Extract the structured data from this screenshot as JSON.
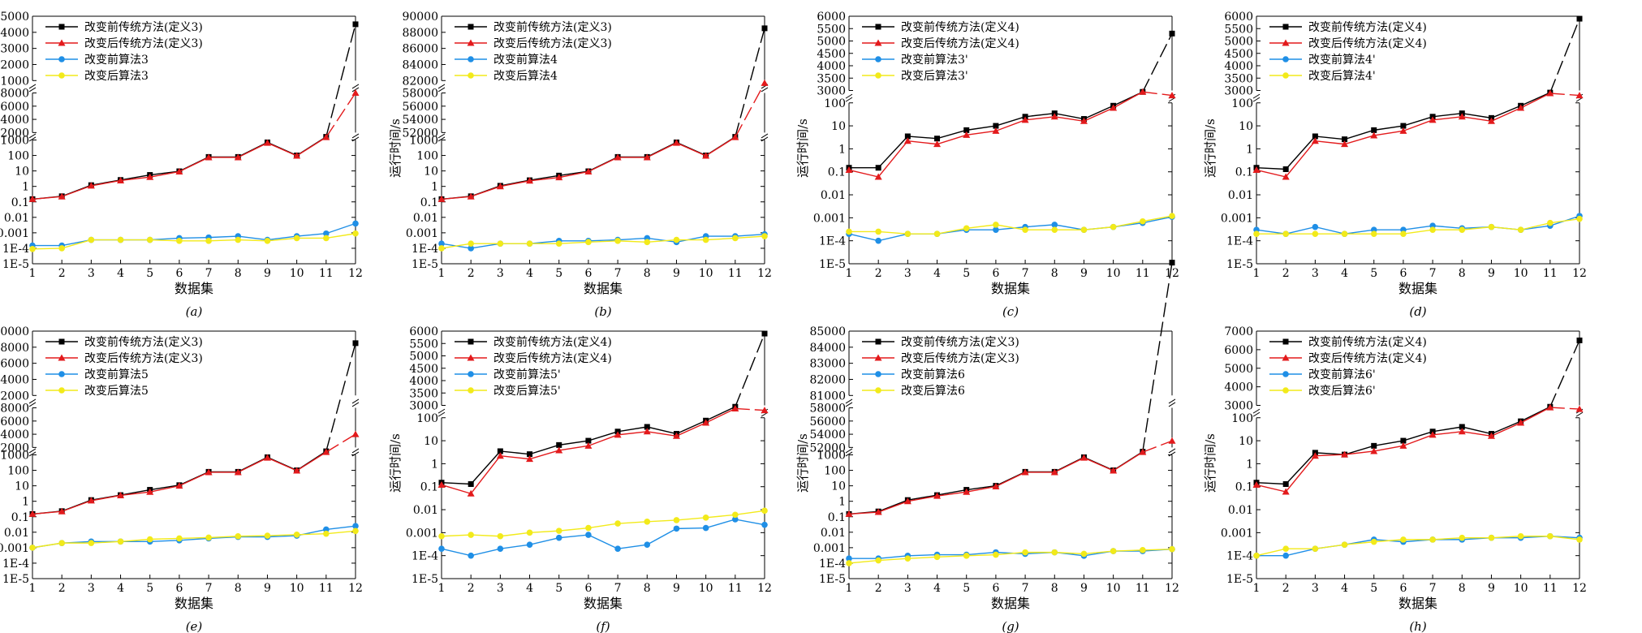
{
  "colors": {
    "s1": "#000000",
    "s2": "#e31a1c",
    "s3": "#1f8fe6",
    "s4": "#f2ea1a"
  },
  "chart_data": [
    {
      "type": "line",
      "caption": "(a)",
      "xlabel": "数据集",
      "ylabel": "运行时间/s",
      "x": [
        1,
        2,
        3,
        4,
        5,
        6,
        7,
        8,
        9,
        10,
        11,
        12
      ],
      "y_scale": "broken (log lower, linear upper)",
      "lower_log_ticks": [
        "1E-5",
        "1E-4",
        "0.001",
        "0.01",
        "0.1",
        "1",
        "10",
        "100",
        "1000"
      ],
      "mid_ticks": [
        52000,
        54000,
        56000,
        58000
      ],
      "top_ticks": [
        81000,
        82000,
        83000,
        84000,
        85000
      ],
      "legend_position": "top-left",
      "series": [
        {
          "name": "改变前传统方法(定义3)",
          "marker": "square",
          "color": "#000000",
          "values": [
            0.15,
            0.23,
            1.2,
            2.6,
            5.5,
            9.5,
            80,
            80,
            700,
            100,
            1600,
            84500
          ]
        },
        {
          "name": "改变后传统方法(定义3)",
          "marker": "triangle",
          "color": "#e31a1c",
          "values": [
            0.15,
            0.22,
            1.1,
            2.4,
            4.0,
            9.0,
            75,
            75,
            650,
            95,
            1500,
            58000
          ]
        },
        {
          "name": "改变前算法3",
          "marker": "circle",
          "color": "#1f8fe6",
          "values": [
            0.00015,
            0.00015,
            0.00035,
            0.00035,
            0.00035,
            0.00045,
            0.0005,
            0.0006,
            0.00035,
            0.0006,
            0.0009,
            0.004
          ]
        },
        {
          "name": "改变后算法3",
          "marker": "circle",
          "color": "#f2ea1a",
          "values": [
            9e-05,
            0.0001,
            0.00035,
            0.00035,
            0.00035,
            0.0003,
            0.0003,
            0.00035,
            0.0003,
            0.00045,
            0.00045,
            0.0009
          ]
        }
      ]
    },
    {
      "type": "line",
      "caption": "(b)",
      "xlabel": "数据集",
      "ylabel": "运行时间/s",
      "x": [
        1,
        2,
        3,
        4,
        5,
        6,
        7,
        8,
        9,
        10,
        11,
        12
      ],
      "y_scale": "broken (log lower, linear upper)",
      "lower_log_ticks": [
        "1E-5",
        "1E-4",
        "0.001",
        "0.01",
        "0.1",
        "1",
        "10",
        "100",
        "1000"
      ],
      "mid_ticks": [
        52000,
        54000,
        56000,
        58000
      ],
      "top_ticks": [
        82000,
        84000,
        86000,
        88000,
        90000
      ],
      "legend_position": "top-left",
      "series": [
        {
          "name": "改变前传统方法(定义3)",
          "marker": "square",
          "color": "#000000",
          "values": [
            0.15,
            0.23,
            1.1,
            2.5,
            5.0,
            9.5,
            80,
            80,
            700,
            100,
            1600,
            88500
          ]
        },
        {
          "name": "改变后传统方法(定义3)",
          "marker": "triangle",
          "color": "#e31a1c",
          "values": [
            0.15,
            0.22,
            1.0,
            2.3,
            3.8,
            9.0,
            75,
            75,
            650,
            95,
            1500,
            59500
          ]
        },
        {
          "name": "改变前算法4",
          "marker": "circle",
          "color": "#1f8fe6",
          "values": [
            0.0002,
            0.0001,
            0.0002,
            0.0002,
            0.0003,
            0.0003,
            0.00035,
            0.00045,
            0.00025,
            0.0006,
            0.0006,
            0.0008
          ]
        },
        {
          "name": "改变后算法4",
          "marker": "circle",
          "color": "#f2ea1a",
          "values": [
            0.0001,
            0.0002,
            0.0002,
            0.0002,
            0.0002,
            0.00025,
            0.0003,
            0.00025,
            0.00035,
            0.00035,
            0.00045,
            0.0006
          ]
        }
      ]
    },
    {
      "type": "line",
      "caption": "(c)",
      "xlabel": "数据集",
      "ylabel": "运行时间/s",
      "x": [
        1,
        2,
        3,
        4,
        5,
        6,
        7,
        8,
        9,
        10,
        11,
        12
      ],
      "y_scale": "broken (log lower, linear upper)",
      "lower_log_ticks": [
        "1E-5",
        "1E-4",
        "0.001",
        "0.01",
        "0.1",
        "1",
        "10",
        "100"
      ],
      "top_ticks": [
        3000,
        3500,
        4000,
        4500,
        5000,
        5500,
        6000
      ],
      "legend_position": "top-left",
      "series": [
        {
          "name": "改变前传统方法(定义4)",
          "marker": "square",
          "color": "#000000",
          "values": [
            0.15,
            0.15,
            3.5,
            2.8,
            6.5,
            10,
            25,
            35,
            20,
            75,
            300,
            5300
          ]
        },
        {
          "name": "改变后传统方法(定义4)",
          "marker": "triangle",
          "color": "#e31a1c",
          "values": [
            0.12,
            0.06,
            2.2,
            1.6,
            4.0,
            6.0,
            18,
            25,
            16,
            60,
            300,
            2800
          ]
        },
        {
          "name": "改变前算法3'",
          "marker": "circle",
          "color": "#1f8fe6",
          "values": [
            0.0002,
            0.0001,
            0.0002,
            0.0002,
            0.0003,
            0.0003,
            0.0004,
            0.0005,
            0.0003,
            0.0004,
            0.0006,
            0.0011
          ]
        },
        {
          "name": "改变后算法3'",
          "marker": "circle",
          "color": "#f2ea1a",
          "values": [
            0.00025,
            0.00025,
            0.0002,
            0.0002,
            0.00035,
            0.0005,
            0.0003,
            0.0003,
            0.0003,
            0.0004,
            0.0007,
            0.0012
          ]
        }
      ]
    },
    {
      "type": "line",
      "caption": "(d)",
      "xlabel": "数据集",
      "ylabel": "运行时间/s",
      "x": [
        1,
        2,
        3,
        4,
        5,
        6,
        7,
        8,
        9,
        10,
        11,
        12
      ],
      "y_scale": "broken (log lower, linear upper)",
      "lower_log_ticks": [
        "1E-5",
        "1E-4",
        "0.001",
        "0.01",
        "0.1",
        "1",
        "10",
        "100"
      ],
      "top_ticks": [
        3000,
        3500,
        4000,
        4500,
        5000,
        5500,
        6000
      ],
      "legend_position": "top-left",
      "series": [
        {
          "name": "改变前传统方法(定义4)",
          "marker": "square",
          "color": "#000000",
          "values": [
            0.15,
            0.13,
            3.5,
            2.6,
            6.5,
            10,
            25,
            35,
            22,
            75,
            280,
            5900
          ]
        },
        {
          "name": "改变后传统方法(定义4)",
          "marker": "triangle",
          "color": "#e31a1c",
          "values": [
            0.12,
            0.06,
            2.2,
            1.6,
            3.8,
            6.0,
            18,
            25,
            16,
            60,
            260,
            2800
          ]
        },
        {
          "name": "改变前算法4'",
          "marker": "circle",
          "color": "#1f8fe6",
          "values": [
            0.0003,
            0.0002,
            0.0004,
            0.0002,
            0.0003,
            0.0003,
            0.00045,
            0.00035,
            0.0004,
            0.0003,
            0.00045,
            0.0012
          ]
        },
        {
          "name": "改变后算法4'",
          "marker": "circle",
          "color": "#f2ea1a",
          "values": [
            0.0002,
            0.0002,
            0.0002,
            0.0002,
            0.0002,
            0.0002,
            0.0003,
            0.0003,
            0.0004,
            0.0003,
            0.0006,
            0.0009
          ]
        }
      ]
    },
    {
      "type": "line",
      "caption": "(e)",
      "xlabel": "数据集",
      "ylabel": "运行时间/s",
      "x": [
        1,
        2,
        3,
        4,
        5,
        6,
        7,
        8,
        9,
        10,
        11,
        12
      ],
      "y_scale": "broken (log lower, linear upper)",
      "lower_log_ticks": [
        "1E-5",
        "1E-4",
        "0.001",
        "0.01",
        "0.1",
        "1",
        "10",
        "100",
        "1000"
      ],
      "mid_ticks": [
        52000,
        54000,
        56000,
        58000
      ],
      "top_ticks": [
        82000,
        84000,
        86000,
        88000,
        90000
      ],
      "legend_position": "top-left",
      "series": [
        {
          "name": "改变前传统方法(定义3)",
          "marker": "square",
          "color": "#000000",
          "values": [
            0.15,
            0.23,
            1.2,
            2.5,
            5.5,
            11,
            80,
            80,
            700,
            100,
            1700,
            88500
          ]
        },
        {
          "name": "改变后传统方法(定义3)",
          "marker": "triangle",
          "color": "#e31a1c",
          "values": [
            0.15,
            0.22,
            1.1,
            2.4,
            4.0,
            10,
            75,
            75,
            650,
            95,
            1500,
            54000
          ]
        },
        {
          "name": "改变前算法5",
          "marker": "circle",
          "color": "#1f8fe6",
          "values": [
            0.001,
            0.002,
            0.0025,
            0.0025,
            0.0025,
            0.003,
            0.004,
            0.005,
            0.005,
            0.006,
            0.015,
            0.025
          ]
        },
        {
          "name": "改变后算法5",
          "marker": "circle",
          "color": "#f2ea1a",
          "values": [
            0.001,
            0.002,
            0.002,
            0.0025,
            0.0035,
            0.004,
            0.0045,
            0.0055,
            0.006,
            0.007,
            0.008,
            0.012
          ]
        }
      ]
    },
    {
      "type": "line",
      "caption": "(f)",
      "xlabel": "数据集",
      "ylabel": "运行时间/s",
      "x": [
        1,
        2,
        3,
        4,
        5,
        6,
        7,
        8,
        9,
        10,
        11,
        12
      ],
      "y_scale": "broken (log lower, linear upper)",
      "lower_log_ticks": [
        "1E-5",
        "1E-4",
        "0.001",
        "0.01",
        "0.1",
        "1",
        "10",
        "100"
      ],
      "top_ticks": [
        3000,
        3500,
        4000,
        4500,
        5000,
        5500,
        6000
      ],
      "legend_position": "top-left",
      "series": [
        {
          "name": "改变前传统方法(定义4)",
          "marker": "square",
          "color": "#000000",
          "values": [
            0.15,
            0.13,
            3.5,
            2.6,
            6.5,
            10,
            25,
            40,
            20,
            75,
            300,
            5900
          ]
        },
        {
          "name": "改变后传统方法(定义4)",
          "marker": "triangle",
          "color": "#e31a1c",
          "values": [
            0.12,
            0.05,
            2.2,
            1.6,
            3.8,
            6.0,
            18,
            25,
            16,
            60,
            250,
            2800
          ]
        },
        {
          "name": "改变前算法5'",
          "marker": "circle",
          "color": "#1f8fe6",
          "values": [
            0.0002,
            0.0001,
            0.0002,
            0.0003,
            0.0006,
            0.0008,
            0.0002,
            0.0003,
            0.0015,
            0.0016,
            0.0038,
            0.0022
          ]
        },
        {
          "name": "改变后算法5'",
          "marker": "circle",
          "color": "#f2ea1a",
          "values": [
            0.0007,
            0.0008,
            0.0007,
            0.001,
            0.0012,
            0.0016,
            0.0025,
            0.003,
            0.0035,
            0.0045,
            0.006,
            0.009
          ]
        }
      ]
    },
    {
      "type": "line",
      "caption": "(g)",
      "xlabel": "数据集",
      "ylabel": "运行时间/s",
      "x": [
        1,
        2,
        3,
        4,
        5,
        6,
        7,
        8,
        9,
        10,
        11,
        12
      ],
      "y_scale": "broken (log lower, linear upper)",
      "lower_log_ticks": [
        "1E-5",
        "1E-4",
        "0.001",
        "0.01",
        "0.1",
        "1",
        "10",
        "100",
        "1000"
      ],
      "mid_ticks": [
        52000,
        54000,
        56000,
        58000
      ],
      "top_ticks": [
        81000,
        82000,
        83000,
        84000,
        85000
      ],
      "legend_position": "top-left",
      "series": [
        {
          "name": "改变前传统方法(定义3)",
          "marker": "square",
          "color": "#000000",
          "values": [
            0.15,
            0.22,
            1.2,
            2.5,
            5.5,
            10,
            80,
            80,
            700,
            100,
            1600,
            80000
          ]
        },
        {
          "name": "改变后传统方法(定义3)",
          "marker": "triangle",
          "color": "#e31a1c",
          "values": [
            0.15,
            0.2,
            1.0,
            2.2,
            4.0,
            9.0,
            75,
            75,
            650,
            95,
            1500,
            53000
          ]
        },
        {
          "name": "改变前算法6",
          "marker": "circle",
          "color": "#1f8fe6",
          "values": [
            0.0002,
            0.0002,
            0.0003,
            0.00035,
            0.00035,
            0.0005,
            0.0004,
            0.0005,
            0.0003,
            0.0006,
            0.0006,
            0.0008
          ]
        },
        {
          "name": "改变后算法6",
          "marker": "circle",
          "color": "#f2ea1a",
          "values": [
            0.0001,
            0.00015,
            0.0002,
            0.00025,
            0.0003,
            0.00035,
            0.0005,
            0.0005,
            0.0004,
            0.0006,
            0.0007,
            0.0008
          ]
        }
      ]
    },
    {
      "type": "line",
      "caption": "(h)",
      "xlabel": "数据集",
      "ylabel": "运行时间/s",
      "x": [
        1,
        2,
        3,
        4,
        5,
        6,
        7,
        8,
        9,
        10,
        11,
        12
      ],
      "y_scale": "broken (log lower, linear upper)",
      "lower_log_ticks": [
        "1E-5",
        "1E-4",
        "0.001",
        "0.01",
        "0.1",
        "1",
        "10",
        "100"
      ],
      "top_ticks": [
        3000,
        4000,
        5000,
        6000,
        7000
      ],
      "legend_position": "top-left",
      "series": [
        {
          "name": "改变前传统方法(定义4)",
          "marker": "square",
          "color": "#000000",
          "values": [
            0.15,
            0.13,
            3.0,
            2.5,
            6.0,
            10,
            25,
            40,
            20,
            70,
            300,
            6500
          ]
        },
        {
          "name": "改变后传统方法(定义4)",
          "marker": "triangle",
          "color": "#e31a1c",
          "values": [
            0.12,
            0.06,
            2.2,
            2.5,
            3.5,
            6.0,
            18,
            25,
            16,
            60,
            280,
            2800
          ]
        },
        {
          "name": "改变前算法6'",
          "marker": "circle",
          "color": "#1f8fe6",
          "values": [
            0.0001,
            0.0001,
            0.0002,
            0.0003,
            0.0005,
            0.0004,
            0.0005,
            0.0005,
            0.0006,
            0.0006,
            0.0007,
            0.0006
          ]
        },
        {
          "name": "改变后算法6'",
          "marker": "circle",
          "color": "#f2ea1a",
          "values": [
            0.0001,
            0.0002,
            0.0002,
            0.0003,
            0.0004,
            0.0005,
            0.0005,
            0.0006,
            0.0006,
            0.0007,
            0.0007,
            0.0005
          ]
        }
      ]
    }
  ]
}
